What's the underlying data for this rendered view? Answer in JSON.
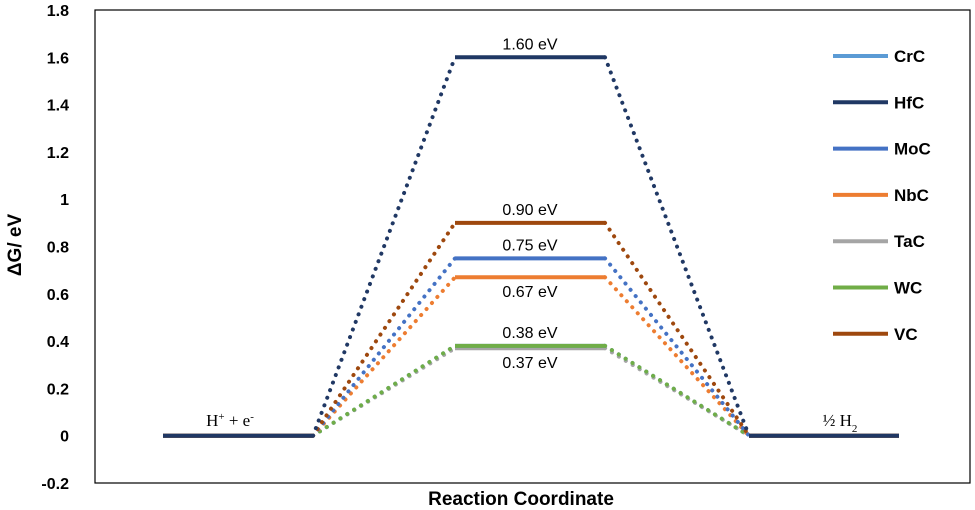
{
  "chart_data": {
    "type": "line",
    "title": "",
    "xlabel": "Reaction Coordinate",
    "ylabel": "ΔG/ eV",
    "ylim": [
      -0.2,
      1.8
    ],
    "yticks": [
      "-0.2",
      "0",
      "0.2",
      "0.4",
      "0.6",
      "0.8",
      "1",
      "1.2",
      "1.4",
      "1.6",
      "1.8"
    ],
    "ytick_values": [
      -0.2,
      0,
      0.2,
      0.4,
      0.6,
      0.8,
      1,
      1.2,
      1.4,
      1.6,
      1.8
    ],
    "grid": false,
    "legend_position": "right",
    "states": {
      "initial": {
        "base": "H",
        "sup1": "+",
        "mid": " + e",
        "sup2": "-"
      },
      "final": {
        "base": "½ H",
        "sub": "2"
      }
    },
    "series": [
      {
        "name": "CrC",
        "color": "#5B9BD5",
        "values": [
          0,
          0.38,
          0
        ]
      },
      {
        "name": "HfC",
        "color": "#203864",
        "values": [
          0,
          1.6,
          0
        ]
      },
      {
        "name": "MoC",
        "color": "#4472C4",
        "values": [
          0,
          0.75,
          0
        ]
      },
      {
        "name": "NbC",
        "color": "#ED7D31",
        "values": [
          0,
          0.67,
          0
        ]
      },
      {
        "name": "TaC",
        "color": "#A5A5A5",
        "values": [
          0,
          0.37,
          0
        ]
      },
      {
        "name": "WC",
        "color": "#70AD47",
        "values": [
          0,
          0.38,
          0
        ]
      },
      {
        "name": "VC",
        "color": "#9E480E",
        "values": [
          0,
          0.9,
          0
        ]
      }
    ],
    "annotations": [
      {
        "text": "1.60 eV",
        "value": 1.6,
        "position": "above"
      },
      {
        "text": "0.90 eV",
        "value": 0.9,
        "position": "above"
      },
      {
        "text": "0.75 eV",
        "value": 0.75,
        "position": "above"
      },
      {
        "text": "0.67 eV",
        "value": 0.67,
        "position": "below"
      },
      {
        "text": "0.38 eV",
        "value": 0.38,
        "position": "above"
      },
      {
        "text": "0.37 eV",
        "value": 0.37,
        "position": "below"
      }
    ]
  }
}
